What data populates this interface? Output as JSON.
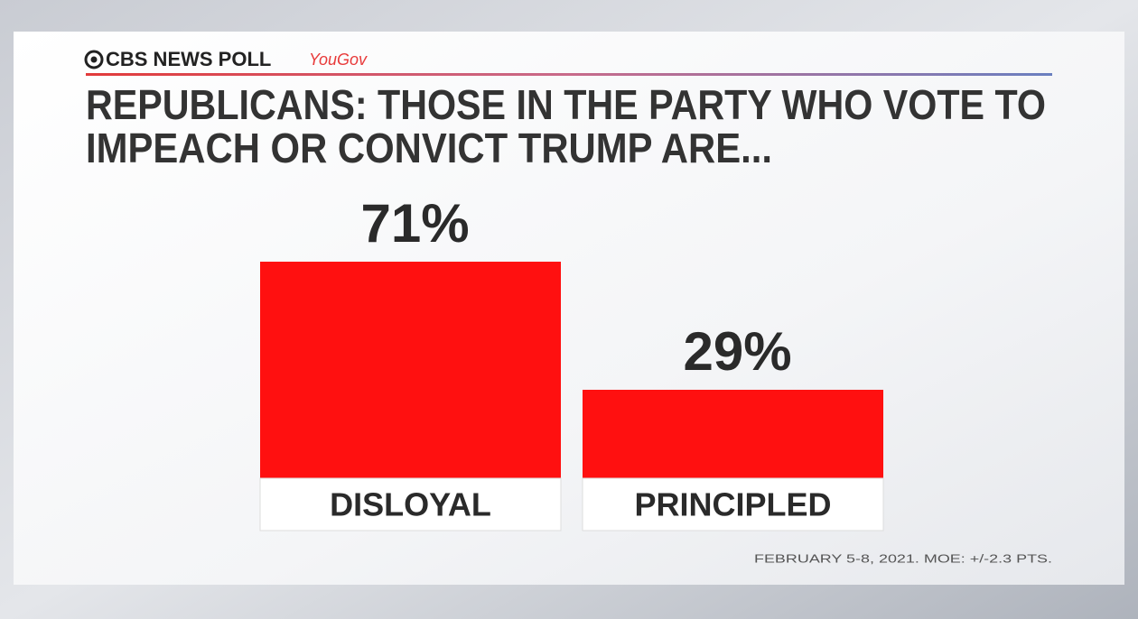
{
  "header": {
    "brand": "CBS NEWS POLL",
    "partner": "YouGov"
  },
  "chart_data": {
    "type": "bar",
    "title": [
      "REPUBLICANS: THOSE IN THE PARTY WHO VOTE TO",
      "IMPEACH OR CONVICT TRUMP ARE..."
    ],
    "categories": [
      "DISLOYAL",
      "PRINCIPLED"
    ],
    "values": [
      71,
      29
    ],
    "value_labels": [
      "71%",
      "29%"
    ],
    "color": "#ff1010"
  },
  "footnote": "FEBRUARY 5-8, 2021. MOE: +/-2.3 PTS."
}
